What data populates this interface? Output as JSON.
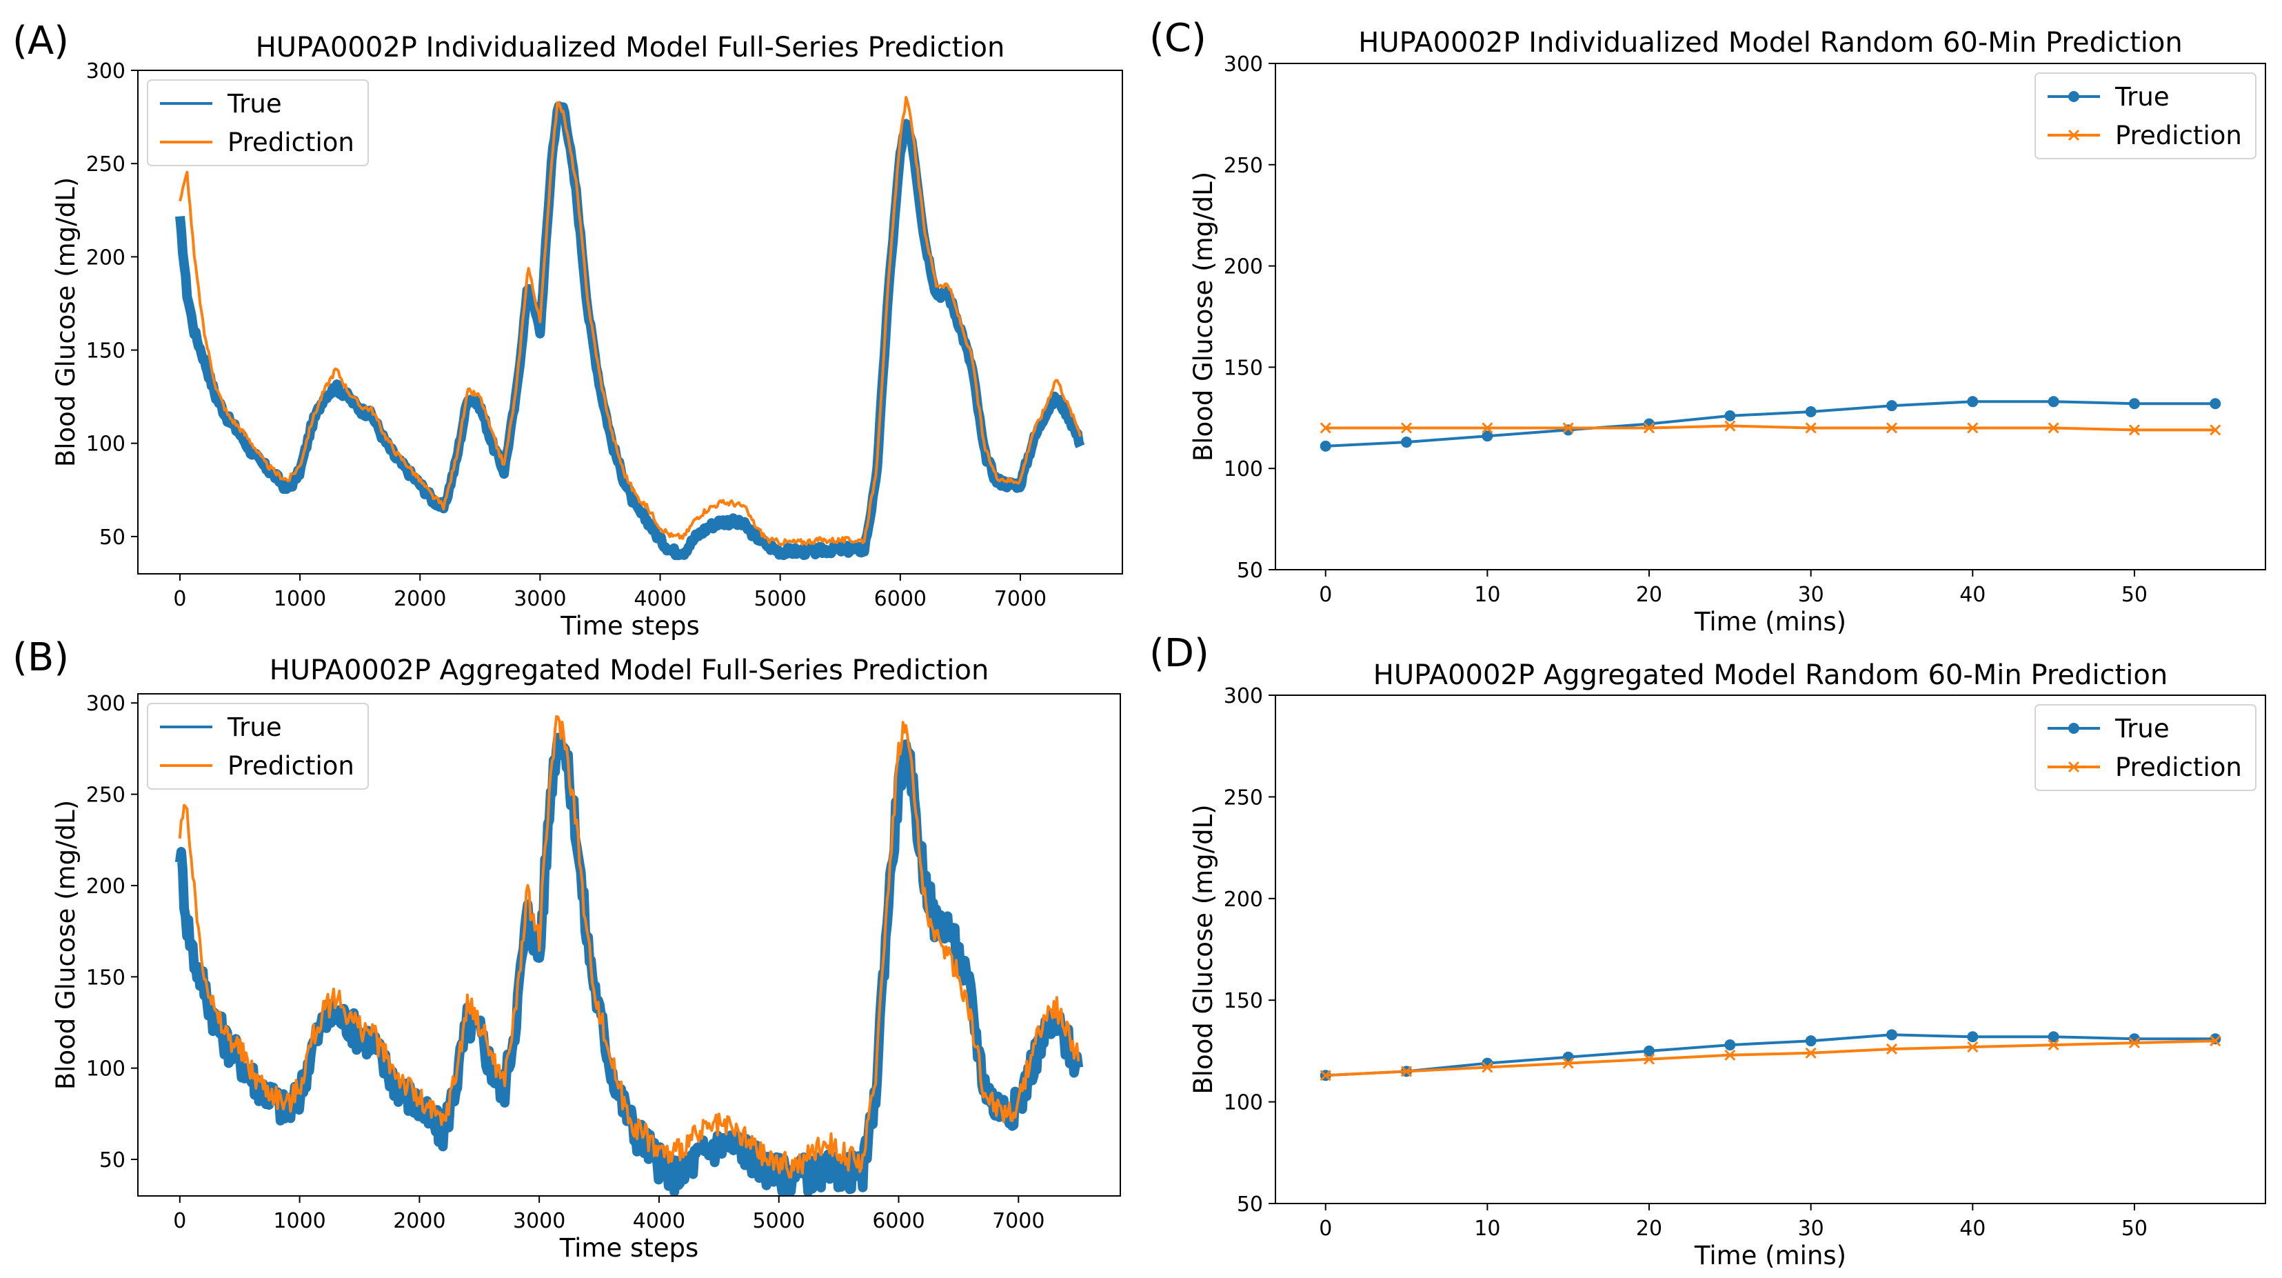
{
  "colors": {
    "true": "#1f77b4",
    "prediction": "#ff7f0e"
  },
  "chart_data": [
    {
      "panel_letter": "(A)",
      "type": "line",
      "title": "HUPA0002P Individualized Model Full-Series Prediction",
      "xlabel": "Time steps",
      "ylabel": "Blood Glucose (mg/dL)",
      "xlim": [
        -350,
        7850
      ],
      "ylim": [
        30,
        300
      ],
      "xticks": [
        0,
        1000,
        2000,
        3000,
        4000,
        5000,
        6000,
        7000
      ],
      "yticks": [
        50,
        100,
        150,
        200,
        250,
        300
      ],
      "legend": [
        "True",
        "Prediction"
      ],
      "legend_position": "top-left",
      "markers": false,
      "noise": 1.6,
      "series": [
        {
          "name": "True",
          "x": [
            0,
            60,
            120,
            200,
            300,
            400,
            500,
            600,
            700,
            800,
            900,
            1000,
            1100,
            1200,
            1300,
            1400,
            1500,
            1600,
            1700,
            1800,
            1900,
            2000,
            2100,
            2200,
            2300,
            2400,
            2500,
            2600,
            2700,
            2800,
            2900,
            3000,
            3100,
            3150,
            3200,
            3300,
            3400,
            3500,
            3600,
            3700,
            3800,
            3900,
            4000,
            4100,
            4200,
            4300,
            4400,
            4500,
            4600,
            4700,
            4800,
            4900,
            5000,
            5100,
            5200,
            5300,
            5400,
            5500,
            5600,
            5700,
            5800,
            5900,
            6000,
            6050,
            6100,
            6200,
            6300,
            6400,
            6500,
            6600,
            6700,
            6800,
            6900,
            7000,
            7100,
            7200,
            7300,
            7400,
            7500
          ],
          "y": [
            220,
            180,
            160,
            145,
            125,
            113,
            105,
            95,
            88,
            82,
            75,
            85,
            110,
            125,
            130,
            125,
            118,
            115,
            102,
            92,
            85,
            78,
            70,
            65,
            90,
            125,
            120,
            100,
            85,
            125,
            185,
            160,
            255,
            280,
            280,
            235,
            170,
            130,
            100,
            80,
            65,
            58,
            48,
            42,
            42,
            50,
            55,
            58,
            58,
            56,
            50,
            45,
            42,
            42,
            42,
            42,
            43,
            43,
            43,
            43,
            80,
            180,
            255,
            270,
            262,
            210,
            180,
            180,
            162,
            140,
            95,
            80,
            78,
            78,
            100,
            115,
            125,
            115,
            100
          ]
        },
        {
          "name": "Prediction",
          "x": [
            0,
            60,
            120,
            200,
            300,
            400,
            500,
            600,
            700,
            800,
            900,
            1000,
            1100,
            1200,
            1300,
            1400,
            1500,
            1600,
            1700,
            1800,
            1900,
            2000,
            2100,
            2200,
            2300,
            2400,
            2500,
            2600,
            2700,
            2800,
            2900,
            3000,
            3100,
            3150,
            3200,
            3300,
            3400,
            3500,
            3600,
            3700,
            3800,
            3900,
            4000,
            4100,
            4200,
            4300,
            4400,
            4500,
            4600,
            4700,
            4800,
            4900,
            5000,
            5100,
            5200,
            5300,
            5400,
            5500,
            5600,
            5700,
            5800,
            5900,
            6000,
            6050,
            6100,
            6200,
            6300,
            6400,
            6500,
            6600,
            6700,
            6800,
            6900,
            7000,
            7100,
            7200,
            7300,
            7400,
            7500
          ],
          "y": [
            230,
            245,
            200,
            160,
            130,
            115,
            108,
            100,
            90,
            84,
            80,
            88,
            112,
            128,
            140,
            128,
            120,
            118,
            105,
            95,
            88,
            80,
            72,
            66,
            92,
            128,
            125,
            105,
            88,
            128,
            195,
            165,
            255,
            285,
            275,
            240,
            175,
            135,
            105,
            84,
            72,
            65,
            55,
            50,
            50,
            60,
            65,
            68,
            68,
            66,
            55,
            48,
            47,
            47,
            47,
            48,
            48,
            48,
            48,
            48,
            85,
            185,
            265,
            285,
            270,
            215,
            185,
            185,
            165,
            145,
            98,
            82,
            80,
            80,
            105,
            118,
            135,
            120,
            105
          ]
        }
      ]
    },
    {
      "panel_letter": "(B)",
      "type": "line",
      "title": "HUPA0002P Aggregated Model Full-Series Prediction",
      "xlabel": "Time steps",
      "ylabel": "Blood Glucose (mg/dL)",
      "xlim": [
        -350,
        7850
      ],
      "ylim": [
        30,
        305
      ],
      "xticks": [
        0,
        1000,
        2000,
        3000,
        4000,
        5000,
        6000,
        7000
      ],
      "yticks": [
        50,
        100,
        150,
        200,
        250,
        300
      ],
      "legend": [
        "True",
        "Prediction"
      ],
      "legend_position": "top-left",
      "markers": false,
      "noise": 7,
      "series": [
        {
          "name": "True",
          "x": [
            0,
            60,
            120,
            200,
            300,
            400,
            500,
            600,
            700,
            800,
            900,
            1000,
            1100,
            1200,
            1300,
            1400,
            1500,
            1600,
            1700,
            1800,
            1900,
            2000,
            2100,
            2200,
            2300,
            2400,
            2500,
            2600,
            2700,
            2800,
            2900,
            3000,
            3100,
            3150,
            3200,
            3300,
            3400,
            3500,
            3600,
            3700,
            3800,
            3900,
            4000,
            4100,
            4200,
            4300,
            4400,
            4500,
            4600,
            4700,
            4800,
            4900,
            5000,
            5100,
            5200,
            5300,
            5400,
            5500,
            5600,
            5700,
            5800,
            5900,
            6000,
            6050,
            6100,
            6200,
            6300,
            6400,
            6500,
            6600,
            6700,
            6800,
            6900,
            7000,
            7100,
            7200,
            7300,
            7400,
            7500
          ],
          "y": [
            220,
            180,
            160,
            145,
            125,
            113,
            105,
            95,
            88,
            82,
            75,
            85,
            110,
            125,
            130,
            125,
            118,
            115,
            102,
            92,
            85,
            78,
            70,
            65,
            90,
            125,
            120,
            100,
            85,
            125,
            185,
            160,
            255,
            280,
            280,
            235,
            170,
            130,
            100,
            80,
            65,
            58,
            48,
            42,
            42,
            50,
            55,
            58,
            58,
            56,
            50,
            45,
            42,
            42,
            42,
            42,
            43,
            43,
            43,
            43,
            80,
            180,
            255,
            270,
            262,
            210,
            180,
            180,
            162,
            140,
            95,
            80,
            78,
            78,
            100,
            115,
            125,
            115,
            100
          ]
        },
        {
          "name": "Prediction",
          "x": [
            0,
            60,
            120,
            200,
            300,
            400,
            500,
            600,
            700,
            800,
            900,
            1000,
            1100,
            1200,
            1300,
            1400,
            1500,
            1600,
            1700,
            1800,
            1900,
            2000,
            2100,
            2200,
            2300,
            2400,
            2500,
            2600,
            2700,
            2800,
            2900,
            3000,
            3100,
            3150,
            3200,
            3300,
            3400,
            3500,
            3600,
            3700,
            3800,
            3900,
            4000,
            4100,
            4200,
            4300,
            4400,
            4500,
            4600,
            4700,
            4800,
            4900,
            5000,
            5100,
            5200,
            5300,
            5400,
            5500,
            5600,
            5700,
            5800,
            5900,
            6000,
            6050,
            6100,
            6200,
            6300,
            6400,
            6500,
            6600,
            6700,
            6800,
            6900,
            7000,
            7100,
            7200,
            7300,
            7400,
            7500
          ],
          "y": [
            225,
            245,
            195,
            155,
            128,
            118,
            110,
            98,
            90,
            85,
            80,
            90,
            115,
            130,
            140,
            130,
            122,
            120,
            108,
            98,
            90,
            82,
            76,
            70,
            95,
            135,
            125,
            108,
            92,
            130,
            195,
            170,
            265,
            290,
            285,
            240,
            170,
            130,
            105,
            82,
            68,
            62,
            55,
            52,
            58,
            62,
            66,
            68,
            66,
            62,
            56,
            50,
            48,
            46,
            48,
            55,
            60,
            55,
            50,
            50,
            90,
            190,
            275,
            290,
            270,
            200,
            170,
            165,
            150,
            130,
            90,
            80,
            76,
            78,
            108,
            125,
            135,
            120,
            108
          ]
        }
      ]
    },
    {
      "panel_letter": "(C)",
      "type": "line",
      "title": "HUPA0002P Individualized Model Random 60-Min Prediction",
      "xlabel": "Time (mins)",
      "ylabel": "Blood Glucose (mg/dL)",
      "xlim": [
        -3.1,
        58.1
      ],
      "ylim": [
        50,
        300
      ],
      "xticks": [
        0,
        10,
        20,
        30,
        40,
        50
      ],
      "yticks": [
        50,
        100,
        150,
        200,
        250,
        300
      ],
      "legend": [
        "True",
        "Prediction"
      ],
      "legend_position": "top-right",
      "markers": true,
      "noise": 0,
      "series": [
        {
          "name": "True",
          "x": [
            0,
            5,
            10,
            15,
            20,
            25,
            30,
            35,
            40,
            45,
            50,
            55
          ],
          "y": [
            111,
            113,
            116,
            119,
            122,
            126,
            128,
            131,
            133,
            133,
            132,
            132
          ]
        },
        {
          "name": "Prediction",
          "x": [
            0,
            5,
            10,
            15,
            20,
            25,
            30,
            35,
            40,
            45,
            50,
            55
          ],
          "y": [
            120,
            120,
            120,
            120,
            120,
            121,
            120,
            120,
            120,
            120,
            119,
            119
          ]
        }
      ]
    },
    {
      "panel_letter": "(D)",
      "type": "line",
      "title": "HUPA0002P Aggregated Model Random 60-Min Prediction",
      "xlabel": "Time (mins)",
      "ylabel": "Blood Glucose (mg/dL)",
      "xlim": [
        -3.1,
        58.1
      ],
      "ylim": [
        50,
        300
      ],
      "xticks": [
        0,
        10,
        20,
        30,
        40,
        50
      ],
      "yticks": [
        50,
        100,
        150,
        200,
        250,
        300
      ],
      "legend": [
        "True",
        "Prediction"
      ],
      "legend_position": "top-right",
      "markers": true,
      "noise": 0,
      "series": [
        {
          "name": "True",
          "x": [
            0,
            5,
            10,
            15,
            20,
            25,
            30,
            35,
            40,
            45,
            50,
            55
          ],
          "y": [
            113,
            115,
            119,
            122,
            125,
            128,
            130,
            133,
            132,
            132,
            131,
            131
          ]
        },
        {
          "name": "Prediction",
          "x": [
            0,
            5,
            10,
            15,
            20,
            25,
            30,
            35,
            40,
            45,
            50,
            55
          ],
          "y": [
            113,
            115,
            117,
            119,
            121,
            123,
            124,
            126,
            127,
            128,
            129,
            130
          ]
        }
      ]
    }
  ]
}
